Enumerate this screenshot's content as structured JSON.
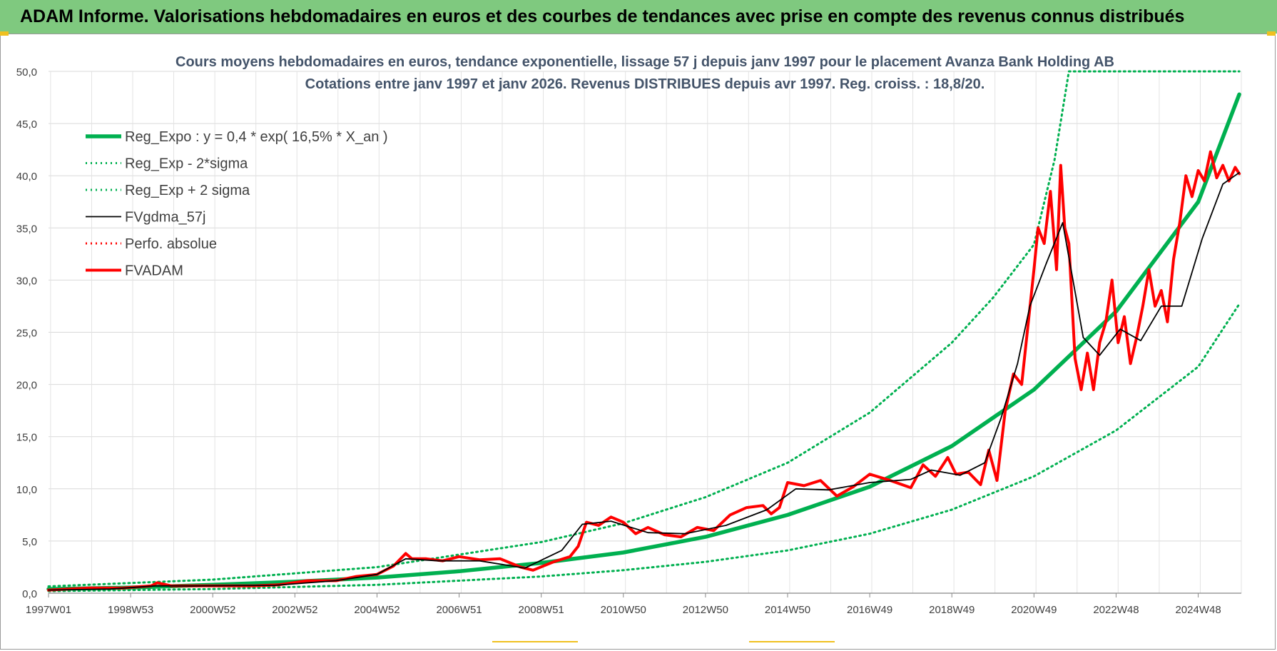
{
  "banner": {
    "title": "ADAM Informe. Valorisations hebdomadaires en euros et des courbes de tendances avec prise en compte des revenus connus distribués"
  },
  "colors": {
    "banner_bg": "#7fc97f",
    "green": "#00b050",
    "black": "#000000",
    "red": "#ff0000"
  },
  "chart_data": {
    "type": "line",
    "title": "Cours moyens hebdomadaires en euros, tendance exponentielle, lissage 57 j depuis janv 1997 pour le placement Avanza Bank Holding AB",
    "subtitle": "Cotations entre janv 1997 et janv 2026. Revenus DISTRIBUES depuis avr 1997.  Reg. croiss. : 18,8/20.",
    "xlabel": "",
    "ylabel": "",
    "ylim": [
      0,
      50
    ],
    "yticks": [
      "0,0",
      "5,0",
      "10,0",
      "15,0",
      "20,0",
      "25,0",
      "30,0",
      "35,0",
      "40,0",
      "45,0",
      "50,0"
    ],
    "xticks": [
      "1997W01",
      "1998W53",
      "2000W52",
      "2002W52",
      "2004W52",
      "2006W51",
      "2008W51",
      "2010W50",
      "2012W50",
      "2014W50",
      "2016W49",
      "2018W49",
      "2020W49",
      "2022W48",
      "2024W48"
    ],
    "xlim": [
      1997.0,
      2026.05
    ],
    "grid": true,
    "legend_position": "top-left",
    "series": [
      {
        "name": "Reg_Expo : y = 0,4 * exp( 16,5% *  X_an )",
        "style": "solid-thick",
        "color": "#00b050",
        "x": [
          1997,
          1999,
          2001,
          2003,
          2005,
          2007,
          2009,
          2011,
          2013,
          2015,
          2017,
          2019,
          2021,
          2023,
          2025,
          2026
        ],
        "values": [
          0.4,
          0.54,
          0.8,
          1.1,
          1.5,
          2.1,
          2.9,
          3.9,
          5.4,
          7.5,
          10.2,
          14.1,
          19.5,
          27.0,
          37.5,
          47.8
        ]
      },
      {
        "name": "Reg_Exp - 2*sigma",
        "style": "dotted",
        "color": "#00b050",
        "x": [
          1997,
          2001,
          2005,
          2009,
          2011,
          2013,
          2015,
          2017,
          2019,
          2021,
          2023,
          2025,
          2026
        ],
        "values": [
          0.2,
          0.4,
          0.8,
          1.6,
          2.2,
          3.0,
          4.1,
          5.7,
          8.0,
          11.2,
          15.6,
          21.7,
          27.7
        ]
      },
      {
        "name": "Reg_Exp + 2 sigma",
        "style": "dotted",
        "color": "#00b050",
        "x": [
          1997,
          2001,
          2005,
          2009,
          2011,
          2013,
          2015,
          2017,
          2019,
          2020,
          2021,
          2021.5,
          2021.85,
          2026
        ],
        "values": [
          0.65,
          1.3,
          2.5,
          4.9,
          6.7,
          9.2,
          12.5,
          17.3,
          24.0,
          28.3,
          33.4,
          41.5,
          50.0,
          50.0
        ]
      },
      {
        "name": "FVgdma_57j",
        "style": "solid",
        "color": "#000000",
        "x": [
          1997,
          1998.5,
          1999.6,
          2000.5,
          2002.5,
          2004,
          2005,
          2005.7,
          2006.5,
          2007.5,
          2008.6,
          2009.5,
          2010.0,
          2010.7,
          2011.6,
          2012.5,
          2013.5,
          2014.5,
          2015.2,
          2016.0,
          2017.0,
          2018.0,
          2018.5,
          2019.2,
          2019.8,
          2020.2,
          2020.6,
          2020.9,
          2021.3,
          2021.7,
          2022.2,
          2022.6,
          2023.1,
          2023.6,
          2024.1,
          2024.6,
          2025.1,
          2025.6,
          2026.0
        ],
        "values": [
          0.3,
          0.4,
          0.7,
          0.7,
          0.75,
          1.2,
          1.8,
          3.3,
          3.1,
          3.1,
          2.4,
          4.1,
          6.6,
          6.9,
          5.8,
          5.7,
          6.5,
          8.0,
          10.0,
          9.9,
          10.6,
          10.9,
          11.8,
          11.3,
          12.5,
          16.8,
          22.0,
          27.5,
          31.6,
          35.5,
          24.5,
          22.8,
          25.3,
          24.2,
          27.5,
          27.5,
          34.0,
          39.2,
          40.3
        ]
      },
      {
        "name": "Perfo. absolue",
        "style": "dotted",
        "color": "#ff0000",
        "x": [],
        "values": []
      },
      {
        "name": "FVADAM",
        "style": "solid-thick",
        "color": "#ff0000",
        "x": [
          1997,
          1998.0,
          1998.8,
          1999.5,
          1999.65,
          2000.0,
          2001.0,
          2002.0,
          2002.6,
          2003.3,
          2004.0,
          2004.5,
          2005.0,
          2005.4,
          2005.7,
          2005.85,
          2006.2,
          2006.6,
          2007.0,
          2007.5,
          2008.0,
          2008.5,
          2008.8,
          2009.3,
          2009.7,
          2009.9,
          2010.1,
          2010.4,
          2010.7,
          2011.0,
          2011.3,
          2011.6,
          2012.0,
          2012.4,
          2012.8,
          2013.2,
          2013.6,
          2014.0,
          2014.4,
          2014.6,
          2014.8,
          2015.0,
          2015.4,
          2015.8,
          2016.2,
          2016.6,
          2017.0,
          2017.5,
          2018.0,
          2018.3,
          2018.6,
          2018.9,
          2019.1,
          2019.4,
          2019.7,
          2019.9,
          2020.1,
          2020.3,
          2020.5,
          2020.7,
          2020.85,
          2021.0,
          2021.1,
          2021.25,
          2021.4,
          2021.55,
          2021.65,
          2021.75,
          2021.85,
          2022.0,
          2022.15,
          2022.3,
          2022.45,
          2022.6,
          2022.75,
          2022.9,
          2023.05,
          2023.2,
          2023.35,
          2023.5,
          2023.65,
          2023.8,
          2023.95,
          2024.1,
          2024.25,
          2024.4,
          2024.55,
          2024.7,
          2024.85,
          2025.0,
          2025.15,
          2025.3,
          2025.45,
          2025.6,
          2025.75,
          2025.9,
          2026.0
        ],
        "values": [
          0.3,
          0.5,
          0.5,
          0.7,
          1.0,
          0.7,
          0.7,
          0.7,
          0.8,
          1.2,
          1.2,
          1.6,
          1.8,
          2.6,
          3.8,
          3.3,
          3.3,
          3.1,
          3.5,
          3.2,
          3.3,
          2.5,
          2.2,
          3.0,
          3.5,
          4.5,
          6.8,
          6.5,
          7.3,
          6.8,
          5.7,
          6.3,
          5.6,
          5.4,
          6.3,
          6.0,
          7.5,
          8.2,
          8.4,
          7.6,
          8.2,
          10.6,
          10.3,
          10.8,
          9.3,
          10.2,
          11.4,
          10.8,
          10.1,
          12.3,
          11.2,
          13.0,
          11.4,
          11.6,
          10.4,
          13.7,
          10.8,
          17.5,
          21.0,
          20.0,
          25.5,
          31.0,
          35.0,
          33.5,
          38.5,
          31.0,
          41.0,
          35.0,
          33.5,
          22.5,
          19.5,
          23.0,
          19.5,
          24.0,
          26.0,
          30.0,
          24.0,
          26.5,
          22.0,
          24.5,
          27.5,
          31.0,
          27.5,
          29.0,
          26.0,
          32.0,
          35.5,
          40.0,
          38.0,
          40.5,
          39.5,
          42.3,
          39.8,
          41.0,
          39.5,
          40.8,
          40.2
        ]
      }
    ]
  }
}
